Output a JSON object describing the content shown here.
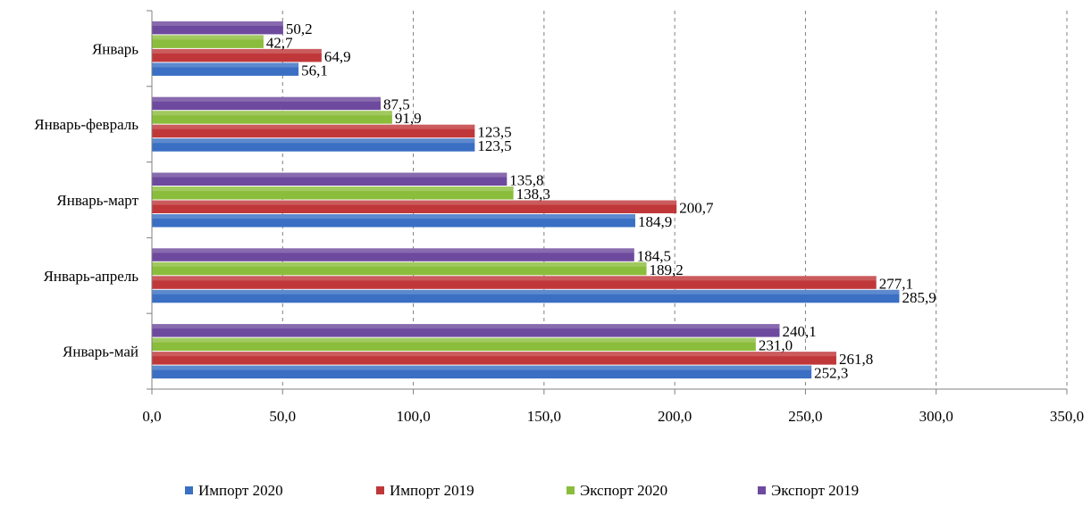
{
  "chart_data": {
    "type": "bar",
    "orientation": "horizontal",
    "categories": [
      "Январь",
      "Январь-февраль",
      "Январь-март",
      "Январь-апрель",
      "Январь-май"
    ],
    "series": [
      {
        "name": "Импорт 2020",
        "color": "#3a6fc4",
        "values": [
          56.1,
          123.5,
          184.9,
          285.9,
          252.3
        ],
        "labels": [
          "56,1",
          "123,5",
          "184,9",
          "285,9",
          "252,3"
        ]
      },
      {
        "name": "Импорт 2019",
        "color": "#c0373a",
        "values": [
          64.9,
          123.5,
          200.7,
          277.1,
          261.8
        ],
        "labels": [
          "64,9",
          "123,5",
          "200,7",
          "277,1",
          "261,8"
        ]
      },
      {
        "name": "Экспорт 2020",
        "color": "#8bbd3c",
        "values": [
          42.7,
          91.9,
          138.3,
          189.2,
          231.0
        ],
        "labels": [
          "42,7",
          "91,9",
          "138,3",
          "189,2",
          "231,0"
        ]
      },
      {
        "name": "Экспорт 2019",
        "color": "#6e4a9e",
        "values": [
          50.2,
          87.5,
          135.8,
          184.5,
          240.1
        ],
        "labels": [
          "50,2",
          "87,5",
          "135,8",
          "184,5",
          "240,1"
        ]
      }
    ],
    "xlim": [
      0,
      350
    ],
    "xticks": [
      0,
      50,
      100,
      150,
      200,
      250,
      300,
      350
    ],
    "xtick_labels": [
      "0,0",
      "50,0",
      "100,0",
      "150,0",
      "200,0",
      "250,0",
      "300,0",
      "350,0"
    ],
    "grid": "vertical dashed",
    "legend": "bottom",
    "title": "",
    "xlabel": "",
    "ylabel": ""
  }
}
